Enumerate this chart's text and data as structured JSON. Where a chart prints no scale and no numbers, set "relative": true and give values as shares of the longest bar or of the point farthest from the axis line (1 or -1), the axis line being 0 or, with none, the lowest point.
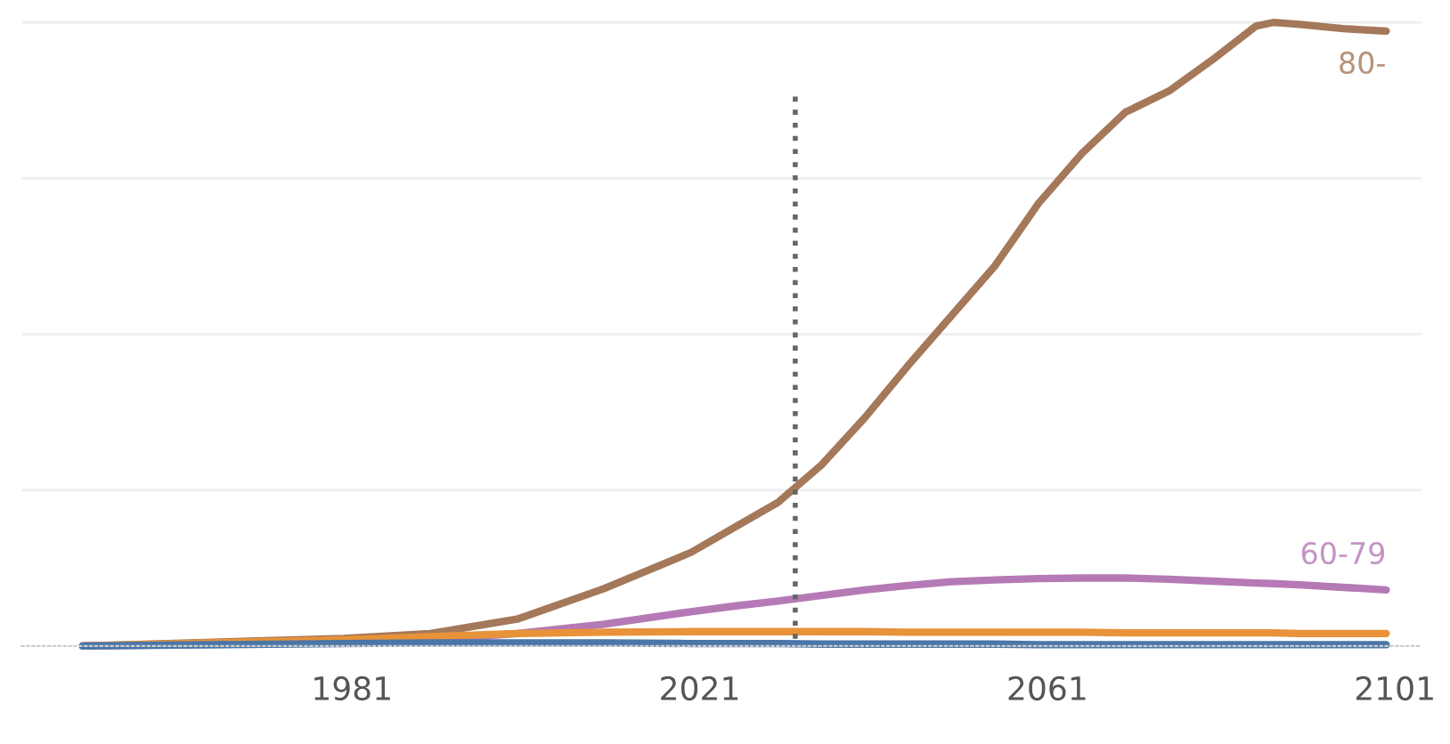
{
  "chart_data": {
    "type": "line",
    "relative": true,
    "x": [
      1950,
      1980,
      1990,
      2000,
      2010,
      2020,
      2025,
      2030,
      2035,
      2040,
      2045,
      2050,
      2055,
      2060,
      2065,
      2070,
      2075,
      2080,
      2085,
      2087,
      2090,
      2095,
      2100
    ],
    "series": [
      {
        "name": "80-",
        "color": "#a5785a",
        "values": [
          0,
          0.012,
          0.02,
          0.043,
          0.092,
          0.15,
          0.19,
          0.23,
          0.29,
          0.366,
          0.45,
          0.53,
          0.61,
          0.71,
          0.79,
          0.856,
          0.89,
          0.94,
          0.994,
          1.0,
          0.997,
          0.99,
          0.986
        ]
      },
      {
        "name": "60-79",
        "color": "#b57ab5",
        "values": [
          0,
          0.005,
          0.01,
          0.02,
          0.035,
          0.055,
          0.064,
          0.072,
          0.081,
          0.09,
          0.097,
          0.103,
          0.106,
          0.108,
          0.109,
          0.109,
          0.107,
          0.104,
          0.101,
          0.1,
          0.098,
          0.094,
          0.09
        ]
      },
      {
        "color": "#e8923a",
        "values": [
          0,
          0.01,
          0.015,
          0.02,
          0.022,
          0.023,
          0.023,
          0.023,
          0.023,
          0.023,
          0.022,
          0.022,
          0.022,
          0.022,
          0.022,
          0.021,
          0.021,
          0.021,
          0.021,
          0.021,
          0.02,
          0.02,
          0.02
        ]
      },
      {
        "color": "#4a76a8",
        "values": [
          0,
          0.004,
          0.005,
          0.005,
          0.005,
          0.004,
          0.004,
          0.004,
          0.003,
          0.003,
          0.003,
          0.003,
          0.003,
          0.002,
          0.002,
          0.002,
          0.002,
          0.002,
          0.002,
          0.002,
          0.002,
          0.002,
          0.002
        ]
      }
    ],
    "xlim": [
      1943,
      2104
    ],
    "xticks": [
      1981,
      2021,
      2061,
      2101
    ],
    "ref_lines": [
      {
        "axis": "x",
        "value": 2032,
        "color": "#666666",
        "line_style": "dotted"
      }
    ],
    "grid": "y",
    "tick_labels": "x",
    "legend": false
  }
}
